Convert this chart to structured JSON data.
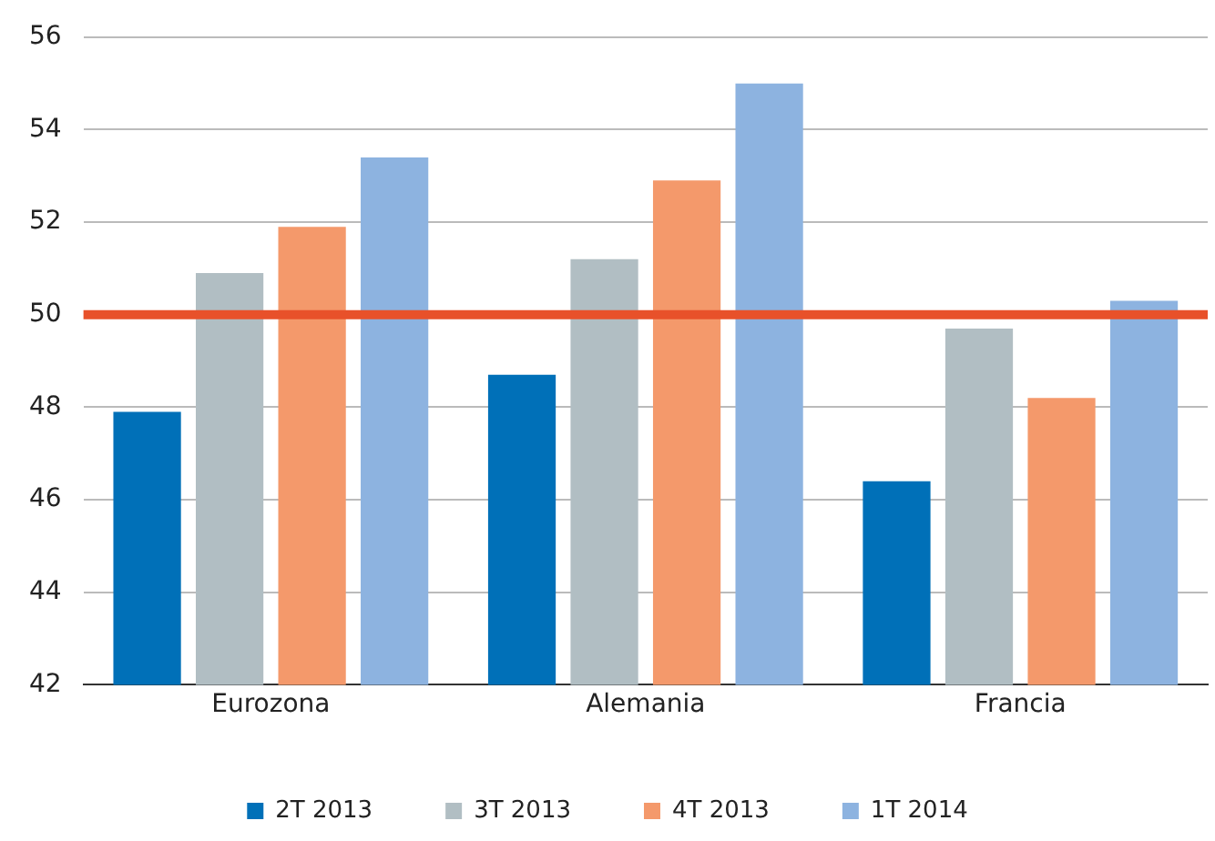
{
  "chart_data": {
    "type": "bar",
    "categories": [
      "Eurozona",
      "Alemania",
      "Francia"
    ],
    "series": [
      {
        "name": "2T 2013",
        "color": "#0070b8",
        "values": [
          47.9,
          48.7,
          46.4
        ]
      },
      {
        "name": "3T 2013",
        "color": "#b1bec3",
        "values": [
          50.9,
          51.2,
          49.7
        ]
      },
      {
        "name": "4T 2013",
        "color": "#f4996b",
        "values": [
          51.9,
          52.9,
          48.2
        ]
      },
      {
        "name": "1T 2014",
        "color": "#8db3e0",
        "values": [
          53.4,
          55.0,
          50.3
        ]
      }
    ],
    "ylim": [
      42,
      56
    ],
    "yticks": [
      42,
      44,
      46,
      48,
      50,
      52,
      54,
      56
    ],
    "grid": "y",
    "legend": "bottom",
    "ref_lines": [
      {
        "axis": "y",
        "value": 50,
        "color": "#e8512a"
      }
    ]
  }
}
